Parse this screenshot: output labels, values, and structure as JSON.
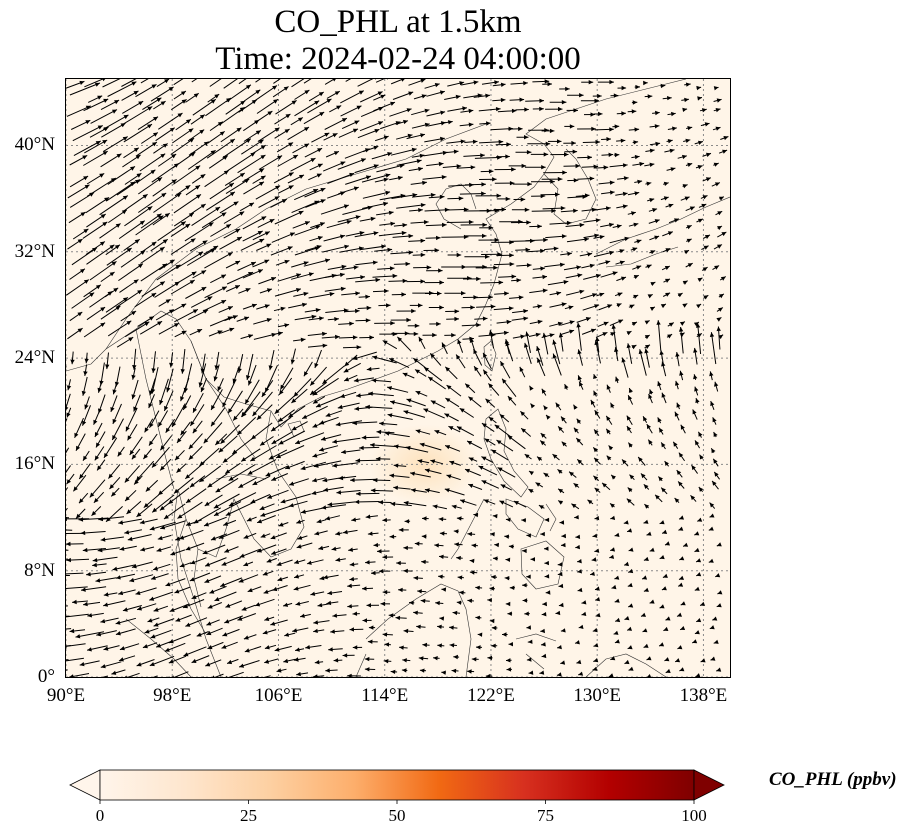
{
  "title": {
    "line1": "CO_PHL at 1.5km",
    "line2": "Time: 2024-02-24 04:00:00"
  },
  "map": {
    "lon_range": [
      90,
      140
    ],
    "lat_range": [
      0,
      45
    ],
    "background_color": "#fff5e8",
    "arrow_color": "#000000",
    "coastline_color": "#333333",
    "grid_color": "#8a8a8a",
    "x_ticks": [
      {
        "value": 90,
        "label": "90°E"
      },
      {
        "value": 98,
        "label": "98°E"
      },
      {
        "value": 106,
        "label": "106°E"
      },
      {
        "value": 114,
        "label": "114°E"
      },
      {
        "value": 122,
        "label": "122°E"
      },
      {
        "value": 130,
        "label": "130°E"
      },
      {
        "value": 138,
        "label": "138°E"
      }
    ],
    "y_ticks": [
      {
        "value": 0,
        "label": "0°"
      },
      {
        "value": 8,
        "label": "8°N"
      },
      {
        "value": 16,
        "label": "16°N"
      },
      {
        "value": 24,
        "label": "24°N"
      },
      {
        "value": 32,
        "label": "32°N"
      },
      {
        "value": 40,
        "label": "40°N"
      }
    ],
    "highlight": {
      "lon": 117,
      "lat": 16,
      "color": "#fde3c0"
    }
  },
  "colorbar": {
    "label": "CO_PHL (ppbv)",
    "min": 0,
    "max": 100,
    "extend": "both",
    "colors": [
      "#fff5eb",
      "#fee6ce",
      "#fdd0a2",
      "#fdae6b",
      "#f16913",
      "#d7301f",
      "#b30000",
      "#7f0000"
    ],
    "ticks": [
      {
        "value": 0,
        "label": "0"
      },
      {
        "value": 25,
        "label": "25"
      },
      {
        "value": 50,
        "label": "50"
      },
      {
        "value": 75,
        "label": "75"
      },
      {
        "value": 100,
        "label": "100"
      }
    ]
  }
}
